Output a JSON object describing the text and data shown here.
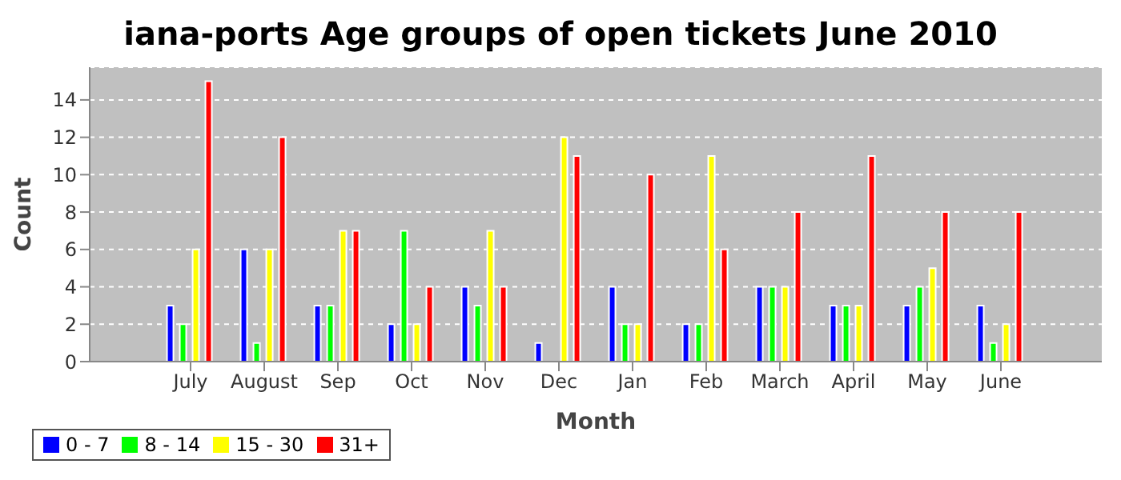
{
  "chart_data": {
    "type": "bar",
    "title": "iana-ports Age groups of open tickets June 2010",
    "xlabel": "Month",
    "ylabel": "Count",
    "categories": [
      "July",
      "August",
      "Sep",
      "Oct",
      "Nov",
      "Dec",
      "Jan",
      "Feb",
      "March",
      "April",
      "May",
      "June"
    ],
    "series": [
      {
        "name": "0 - 7",
        "color": "#0000ff",
        "values": [
          3,
          6,
          3,
          2,
          4,
          1,
          4,
          2,
          4,
          3,
          3,
          3
        ]
      },
      {
        "name": "8 - 14",
        "color": "#00ff00",
        "values": [
          2,
          1,
          3,
          7,
          3,
          0,
          2,
          2,
          4,
          3,
          4,
          1
        ]
      },
      {
        "name": "15 - 30",
        "color": "#ffff00",
        "values": [
          6,
          6,
          7,
          2,
          7,
          12,
          2,
          11,
          4,
          3,
          5,
          2
        ]
      },
      {
        "name": "31+",
        "color": "#ff0000",
        "values": [
          15,
          12,
          7,
          4,
          4,
          11,
          10,
          6,
          8,
          11,
          8,
          8
        ]
      }
    ],
    "ylim": [
      0,
      15.75
    ],
    "yticks": [
      0,
      2,
      4,
      6,
      8,
      10,
      12,
      14
    ],
    "grid": "y",
    "legend": "bottom"
  }
}
